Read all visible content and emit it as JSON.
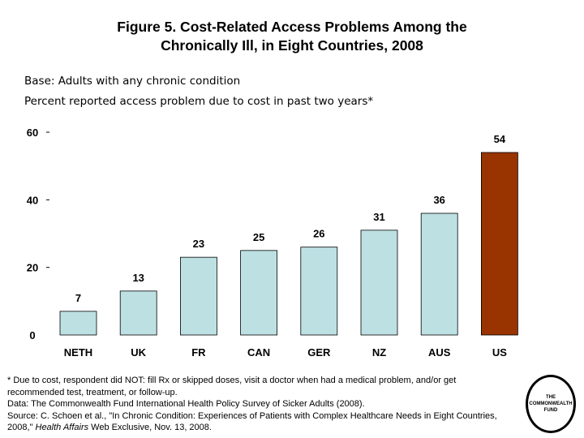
{
  "title_line1": "Figure 5. Cost-Related Access Problems Among the",
  "title_line2": "Chronically Ill, in Eight Countries, 2008",
  "base": "Base: Adults with any chronic condition",
  "subtitle": "Percent reported access problem due to cost in past two years*",
  "chart_data": {
    "type": "bar",
    "categories": [
      "NETH",
      "UK",
      "FR",
      "CAN",
      "GER",
      "NZ",
      "AUS",
      "US"
    ],
    "values": [
      7,
      13,
      23,
      25,
      26,
      31,
      36,
      54
    ],
    "colors": [
      "#bde0e3",
      "#bde0e3",
      "#bde0e3",
      "#bde0e3",
      "#bde0e3",
      "#bde0e3",
      "#bde0e3",
      "#993300"
    ],
    "ylim": [
      0,
      60
    ],
    "yticks": [
      "0",
      "20",
      "40",
      "60"
    ],
    "grid": false,
    "legend": "none",
    "xlabel": "",
    "ylabel": ""
  },
  "notes": {
    "footnote": "* Due to cost, respondent did NOT: fill Rx or skipped doses, visit a doctor when had a medical problem, and/or get recommended test, treatment, or follow-up.",
    "data": "Data: The Commonwealth Fund International Health Policy Survey of Sicker Adults (2008).",
    "source_pre": "Source: C. Schoen et al., \"In Chronic Condition: Experiences of Patients with Complex Healthcare Needs in Eight Countries, 2008,\" ",
    "source_journal": "Health Affairs",
    "source_post": " Web Exclusive, Nov. 13, 2008."
  },
  "logo": {
    "line1": "THE",
    "line2": "COMMONWEALTH",
    "line3": "FUND"
  }
}
